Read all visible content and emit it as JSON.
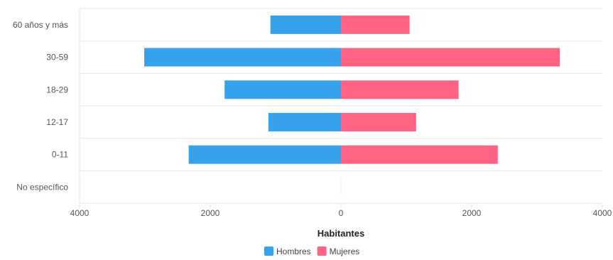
{
  "chart_data": {
    "type": "bar",
    "orientation": "horizontal",
    "style": "population-pyramid",
    "categories": [
      "60 años y más",
      "30-59",
      "18-29",
      "12-17",
      "0-11",
      "No específico"
    ],
    "series": [
      {
        "name": "Hombres",
        "color": "#36a2eb",
        "side": "left",
        "values": [
          1080,
          3010,
          1780,
          1110,
          2330,
          0
        ]
      },
      {
        "name": "Mujeres",
        "color": "#ff6384",
        "side": "right",
        "values": [
          1050,
          3350,
          1800,
          1150,
          2400,
          0
        ]
      }
    ],
    "xlabel": "Habitantes",
    "ylabel": "",
    "xlim": [
      -4000,
      4000
    ],
    "x_ticks": [
      {
        "value": -4000,
        "label": "4000"
      },
      {
        "value": -2000,
        "label": "2000"
      },
      {
        "value": 0,
        "label": "0"
      },
      {
        "value": 2000,
        "label": "2000"
      },
      {
        "value": 4000,
        "label": "4000"
      }
    ],
    "grid": true,
    "legend_position": "bottom"
  }
}
